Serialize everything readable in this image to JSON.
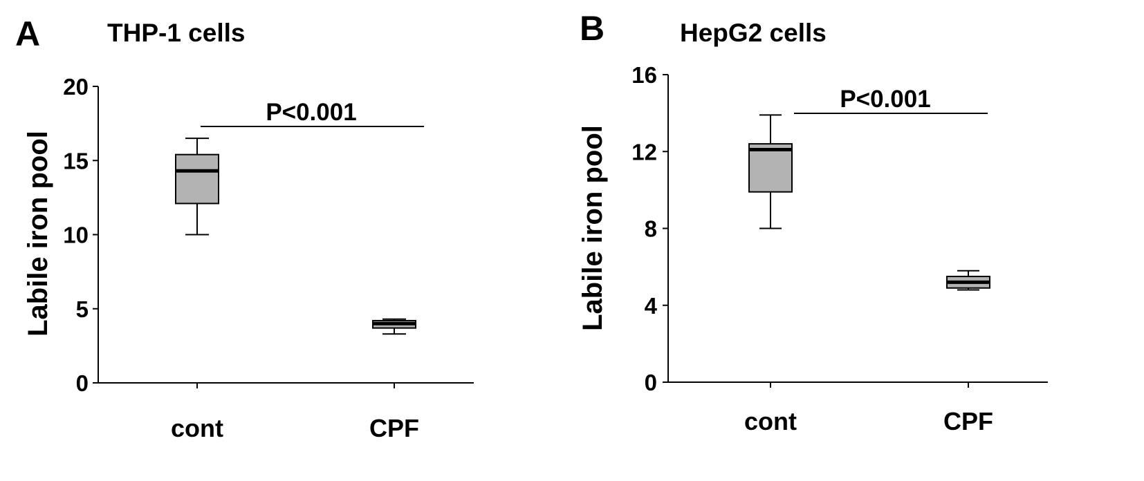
{
  "panels": [
    {
      "letter": "A",
      "title": "THP-1 cells"
    },
    {
      "letter": "B",
      "title": "HepG2 cells"
    }
  ],
  "chart_data": [
    {
      "type": "box",
      "title": "THP-1 cells",
      "ylabel": "Labile iron pool",
      "xlabel": "",
      "ylim": [
        0,
        20
      ],
      "yticks": [
        0,
        5,
        10,
        15,
        20
      ],
      "categories": [
        "cont",
        "CPF"
      ],
      "boxes": [
        {
          "category": "cont",
          "min": 10.0,
          "q1": 12.1,
          "median": 14.3,
          "q3": 15.4,
          "max": 16.5
        },
        {
          "category": "CPF",
          "min": 3.3,
          "q1": 3.7,
          "median": 4.0,
          "q3": 4.2,
          "max": 4.3
        }
      ],
      "annotation": {
        "text": "P<0.001",
        "from": "cont",
        "to": "CPF"
      },
      "box_color": "#b3b3b3",
      "grid": false
    },
    {
      "type": "box",
      "title": "HepG2 cells",
      "ylabel": "Labile iron pool",
      "xlabel": "",
      "ylim": [
        0,
        16
      ],
      "yticks": [
        0,
        4,
        8,
        12,
        16
      ],
      "categories": [
        "cont",
        "CPF"
      ],
      "boxes": [
        {
          "category": "cont",
          "min": 8.0,
          "q1": 9.9,
          "median": 12.1,
          "q3": 12.4,
          "max": 13.9
        },
        {
          "category": "CPF",
          "min": 4.8,
          "q1": 4.9,
          "median": 5.2,
          "q3": 5.5,
          "max": 5.8
        }
      ],
      "annotation": {
        "text": "P<0.001",
        "from": "cont",
        "to": "CPF"
      },
      "box_color": "#b3b3b3",
      "grid": false
    }
  ]
}
